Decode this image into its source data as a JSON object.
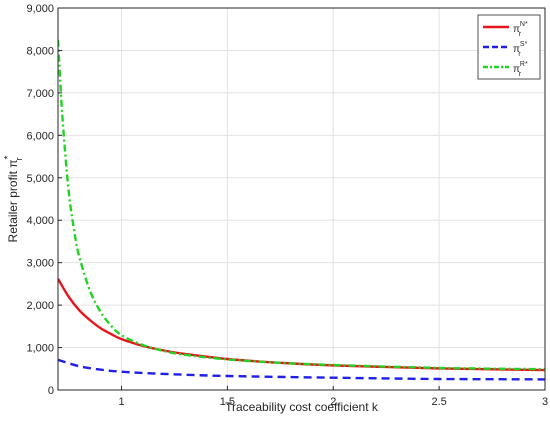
{
  "chart_data": {
    "type": "line",
    "xlabel": "Traceability cost coefficient k",
    "ylabel": "Retailer profit π",
    "ylabel_sub": "r",
    "ylabel_sup": "*",
    "xlim": [
      0.7,
      3
    ],
    "ylim": [
      0,
      9000
    ],
    "xticks": [
      1,
      1.5,
      2,
      2.5,
      3
    ],
    "xtick_labels": [
      "1",
      "1.5",
      "2",
      "2.5",
      "3"
    ],
    "yticks": [
      0,
      1000,
      2000,
      3000,
      4000,
      5000,
      6000,
      7000,
      8000,
      9000
    ],
    "ytick_labels": [
      "0",
      "1,000",
      "2,000",
      "3,000",
      "4,000",
      "5,000",
      "6,000",
      "7,000",
      "8,000",
      "9,000"
    ],
    "grid": true,
    "legend_position": "top-right",
    "series": [
      {
        "label_base": "π",
        "label_sup": "N*",
        "label_sub": "r",
        "color": "#e8141b",
        "style": "solid",
        "x": [
          0.7,
          0.75,
          0.8,
          0.85,
          0.9,
          0.95,
          1.0,
          1.1,
          1.2,
          1.3,
          1.5,
          1.75,
          2.0,
          2.5,
          3.0
        ],
        "y": [
          2620,
          2200,
          1880,
          1650,
          1460,
          1320,
          1200,
          1040,
          930,
          850,
          730,
          640,
          580,
          510,
          470
        ]
      },
      {
        "label_base": "π",
        "label_sup": "S*",
        "label_sub": "r",
        "color": "#1f1fe6",
        "style": "dashed",
        "x": [
          0.7,
          0.8,
          0.9,
          1.0,
          1.2,
          1.5,
          2.0,
          2.5,
          3.0
        ],
        "y": [
          710,
          560,
          480,
          430,
          380,
          330,
          290,
          260,
          250
        ]
      },
      {
        "label_base": "π",
        "label_sup": "R*",
        "label_sub": "r",
        "color": "#22d422",
        "style": "dashdot",
        "x": [
          0.7,
          0.72,
          0.75,
          0.78,
          0.8,
          0.85,
          0.9,
          0.95,
          1.0,
          1.1,
          1.2,
          1.3,
          1.5,
          1.75,
          2.0,
          2.5,
          3.0
        ],
        "y": [
          8250,
          6500,
          4700,
          3650,
          3150,
          2350,
          1850,
          1520,
          1290,
          1060,
          920,
          830,
          720,
          640,
          590,
          520,
          490
        ]
      }
    ]
  }
}
